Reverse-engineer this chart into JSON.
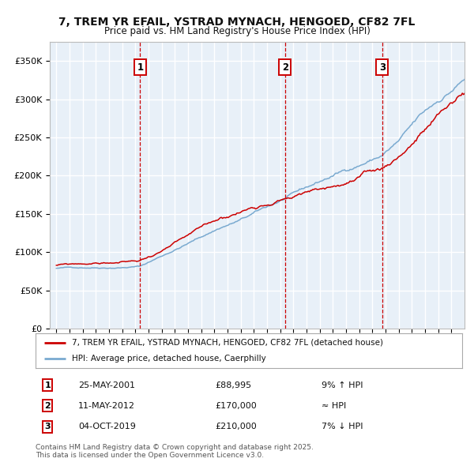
{
  "title": "7, TREM YR EFAIL, YSTRAD MYNACH, HENGOED, CF82 7FL",
  "subtitle": "Price paid vs. HM Land Registry's House Price Index (HPI)",
  "legend_line1": "7, TREM YR EFAIL, YSTRAD MYNACH, HENGOED, CF82 7FL (detached house)",
  "legend_line2": "HPI: Average price, detached house, Caerphilly",
  "footer": "Contains HM Land Registry data © Crown copyright and database right 2025.\nThis data is licensed under the Open Government Licence v3.0.",
  "sale_points": [
    {
      "num": 1,
      "date": "25-MAY-2001",
      "price": 88995,
      "rel": "9% ↑ HPI",
      "x": 2001.37
    },
    {
      "num": 2,
      "date": "11-MAY-2012",
      "price": 170000,
      "rel": "≈ HPI",
      "x": 2012.37
    },
    {
      "num": 3,
      "date": "04-OCT-2019",
      "price": 210000,
      "rel": "7% ↓ HPI",
      "x": 2019.75
    }
  ],
  "ylim": [
    0,
    375000
  ],
  "xlim": [
    1994.5,
    2026.0
  ],
  "yticks": [
    0,
    50000,
    100000,
    150000,
    200000,
    250000,
    300000,
    350000
  ],
  "ytick_labels": [
    "£0",
    "£50K",
    "£100K",
    "£150K",
    "£200K",
    "£250K",
    "£300K",
    "£350K"
  ],
  "xticks": [
    1995,
    1996,
    1997,
    1998,
    1999,
    2000,
    2001,
    2002,
    2003,
    2004,
    2005,
    2006,
    2007,
    2008,
    2009,
    2010,
    2011,
    2012,
    2013,
    2014,
    2015,
    2016,
    2017,
    2018,
    2019,
    2020,
    2021,
    2022,
    2023,
    2024,
    2025
  ],
  "bg_color": "#e8f0f8",
  "grid_color": "#ffffff",
  "red_color": "#cc0000",
  "blue_color": "#7aaad0",
  "start_year": 1995,
  "end_year": 2026,
  "n_months": 373
}
